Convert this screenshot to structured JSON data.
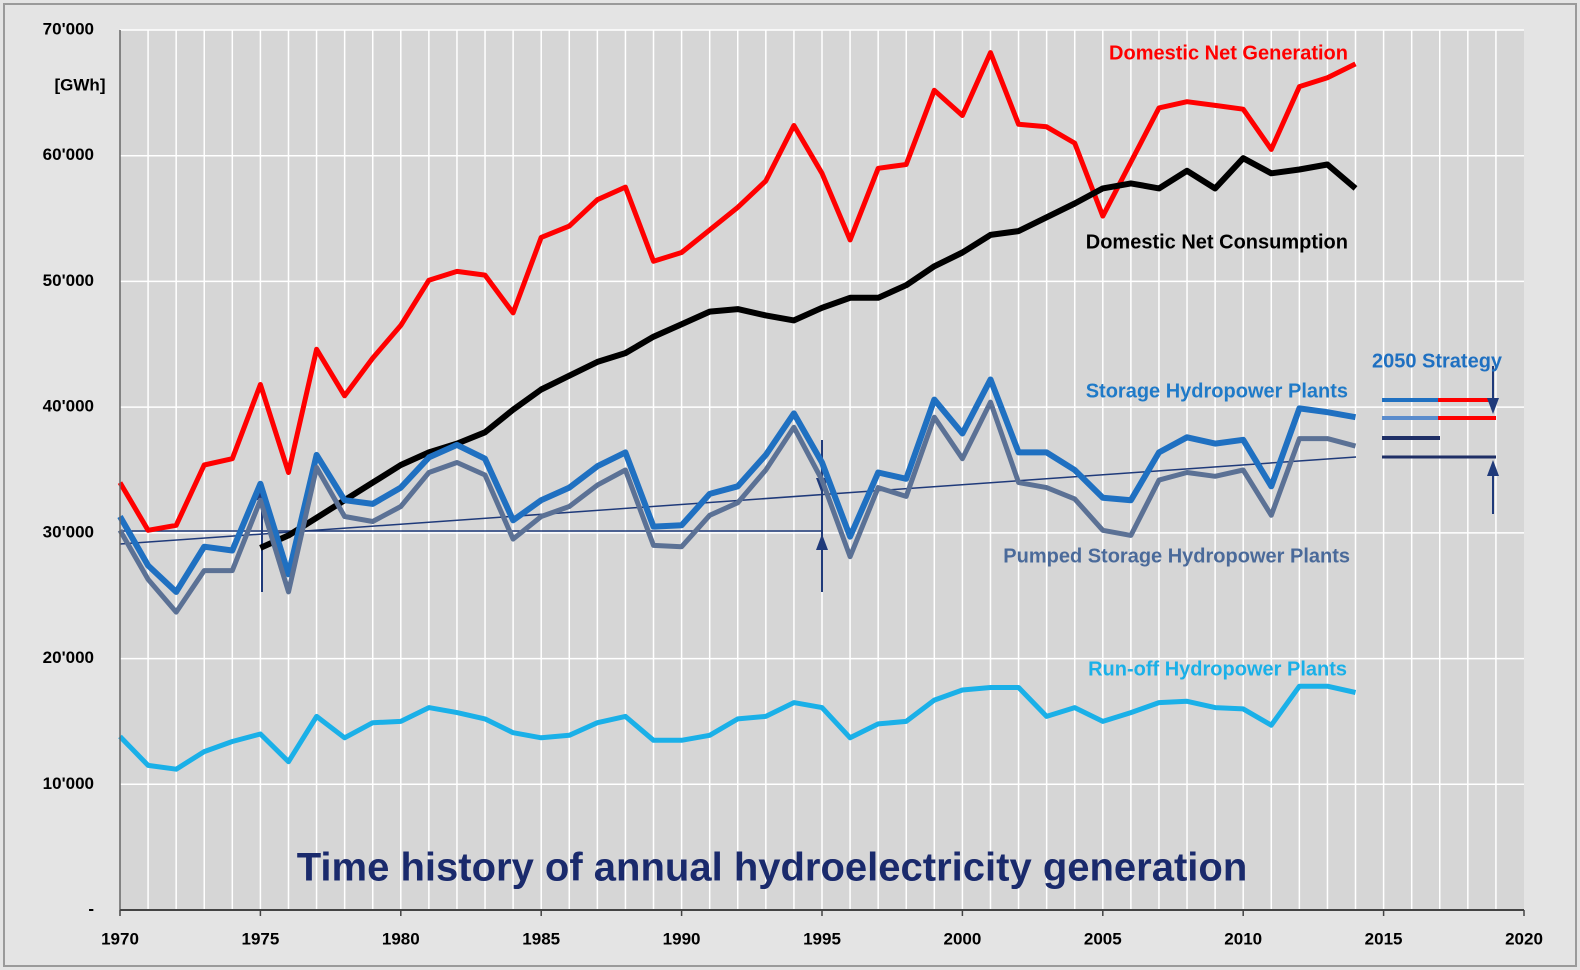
{
  "chart_data": {
    "type": "line",
    "title": "Time history of annual hydroelectricity generation",
    "y_label": "[GWh]",
    "annotation": "2050 Strategy",
    "x": [
      1970,
      1971,
      1972,
      1973,
      1974,
      1975,
      1976,
      1977,
      1978,
      1979,
      1980,
      1981,
      1982,
      1983,
      1984,
      1985,
      1986,
      1987,
      1988,
      1989,
      1990,
      1991,
      1992,
      1993,
      1994,
      1995,
      1996,
      1997,
      1998,
      1999,
      2000,
      2001,
      2002,
      2003,
      2004,
      2005,
      2006,
      2007,
      2008,
      2009,
      2010,
      2011,
      2012,
      2013,
      2014
    ],
    "xlim": [
      1970,
      2020
    ],
    "xticks": [
      1970,
      1975,
      1980,
      1985,
      1990,
      1995,
      2000,
      2005,
      2010,
      2015,
      2020
    ],
    "xgrid": [
      1971,
      1972,
      1973,
      1974,
      1975,
      1976,
      1977,
      1978,
      1979,
      1980,
      1981,
      1982,
      1983,
      1984,
      1985,
      1986,
      1987,
      1988,
      1989,
      1990,
      1991,
      1992,
      1993,
      1994,
      1995,
      1996,
      1997,
      1998,
      1999,
      2000,
      2001,
      2002,
      2003,
      2004,
      2005,
      2006,
      2007,
      2008,
      2009,
      2010,
      2011,
      2012,
      2013,
      2014,
      2015,
      2016,
      2017,
      2018,
      2019
    ],
    "ylim": [
      0,
      70000
    ],
    "yticks": [
      {
        "value": 0,
        "label": "-"
      },
      {
        "value": 10000,
        "label": "10'000"
      },
      {
        "value": 20000,
        "label": "20'000"
      },
      {
        "value": 30000,
        "label": "30'000"
      },
      {
        "value": 40000,
        "label": "40'000"
      },
      {
        "value": 50000,
        "label": "50'000"
      },
      {
        "value": 60000,
        "label": "60'000"
      },
      {
        "value": 70000,
        "label": "70'000"
      }
    ],
    "grid": true,
    "series": [
      {
        "name": "Domestic Net Generation",
        "color": "#ff0000",
        "values": [
          34000,
          30200,
          30600,
          35400,
          35900,
          41800,
          34800,
          44600,
          40900,
          43900,
          46500,
          50100,
          50800,
          50500,
          47500,
          53500,
          54400,
          56500,
          57500,
          51600,
          52300,
          54100,
          55900,
          58000,
          62400,
          58600,
          53300,
          59000,
          59300,
          65200,
          63200,
          68200,
          62500,
          62300,
          61000,
          55200,
          59500,
          63800,
          64300,
          64000,
          63700,
          60500,
          65500,
          66200,
          67300
        ]
      },
      {
        "name": "Domestic Net Consumption",
        "color": "#000000",
        "values": [
          null,
          null,
          null,
          null,
          null,
          28800,
          29800,
          31200,
          32600,
          34000,
          35400,
          36400,
          37100,
          38000,
          39800,
          41400,
          42500,
          43600,
          44300,
          45600,
          46600,
          47600,
          47800,
          47300,
          46900,
          47900,
          48700,
          48700,
          49700,
          51200,
          52300,
          53700,
          54000,
          55100,
          56200,
          57400,
          57800,
          57400,
          58800,
          57400,
          59800,
          58600,
          58900,
          59300,
          57400
        ]
      },
      {
        "name": "Storage Hydropower Plants",
        "color": "#1f70c1",
        "values": [
          31300,
          27400,
          25300,
          28900,
          28600,
          33900,
          26700,
          36200,
          32600,
          32300,
          33600,
          36000,
          37000,
          35900,
          31000,
          32600,
          33600,
          35300,
          36400,
          30500,
          30600,
          33100,
          33700,
          36200,
          39500,
          35600,
          29700,
          34800,
          34300,
          40600,
          37900,
          42200,
          36400,
          36400,
          35000,
          32800,
          32600,
          36400,
          37600,
          37100,
          37400,
          33700,
          39900,
          39600,
          39200
        ]
      },
      {
        "name": "Pumped Storage Hydropower Plants",
        "color": "#5b7195",
        "values": [
          30200,
          26300,
          23700,
          27000,
          27000,
          32600,
          25300,
          35200,
          31300,
          30900,
          32100,
          34800,
          35600,
          34600,
          29500,
          31300,
          32100,
          33800,
          35000,
          29000,
          28900,
          31400,
          32400,
          35000,
          38400,
          34200,
          28100,
          33600,
          32900,
          39200,
          35900,
          40400,
          34000,
          33600,
          32700,
          30200,
          29800,
          34200,
          34800,
          34500,
          35000,
          31400,
          37500,
          37500,
          36900
        ]
      },
      {
        "name": "Run-off Hydropower Plants",
        "color": "#1ab0e8",
        "values": [
          13800,
          11500,
          11200,
          12600,
          13400,
          14000,
          11800,
          15400,
          13700,
          14900,
          15000,
          16100,
          15700,
          15200,
          14100,
          13700,
          13900,
          14900,
          15400,
          13500,
          13500,
          13900,
          15200,
          15400,
          16500,
          16100,
          13700,
          14800,
          15000,
          16700,
          17500,
          17700,
          17700,
          15400,
          16100,
          15000,
          15700,
          16500,
          16600,
          16100,
          16000,
          14700,
          17800,
          17800,
          17300
        ]
      }
    ]
  }
}
